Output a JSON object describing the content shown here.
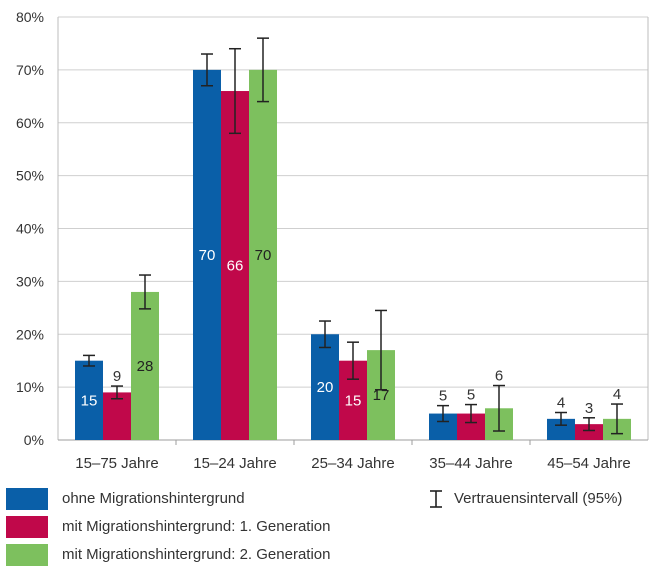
{
  "chart_data": {
    "type": "bar",
    "title": "",
    "xlabel": "",
    "ylabel": "",
    "ylim": [
      0,
      80
    ],
    "yticks": [
      0,
      10,
      20,
      30,
      40,
      50,
      60,
      70,
      80
    ],
    "ytick_labels": [
      "0%",
      "10%",
      "20%",
      "30%",
      "40%",
      "50%",
      "60%",
      "70%",
      "80%"
    ],
    "grid": true,
    "legend_position": "bottom",
    "categories": [
      "15–75 Jahre",
      "15–24 Jahre",
      "25–34 Jahre",
      "35–44 Jahre",
      "45–54 Jahre"
    ],
    "series": [
      {
        "name": "ohne Migrationshintergrund",
        "color": "#0a5fa8",
        "label_color": "#ffffff",
        "values": [
          15,
          70,
          20,
          5,
          4
        ],
        "ci_low": [
          14,
          67,
          17.5,
          3.5,
          2.8
        ],
        "ci_high": [
          16,
          73,
          22.5,
          6.5,
          5.2
        ]
      },
      {
        "name": "mit Migrationshintergrund: 1. Generation",
        "color": "#c0084a",
        "label_color": "#ffffff",
        "values": [
          9,
          66,
          15,
          5,
          3
        ],
        "ci_low": [
          7.8,
          58,
          11.5,
          3.3,
          1.8
        ],
        "ci_high": [
          10.2,
          74,
          18.5,
          6.7,
          4.2
        ]
      },
      {
        "name": "mit Migrationshintergrund: 2. Generation",
        "color": "#7dc05e",
        "label_color": "#222222",
        "values": [
          28,
          70,
          17,
          6,
          4
        ],
        "ci_low": [
          24.8,
          64,
          9.5,
          1.7,
          1.2
        ],
        "ci_high": [
          31.2,
          76,
          24.5,
          10.3,
          6.8
        ]
      }
    ],
    "ci_legend_label": "Vertrauensintervall (95%)"
  }
}
